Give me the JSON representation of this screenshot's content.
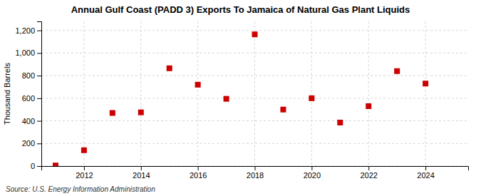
{
  "chart_data": {
    "type": "scatter",
    "title": "Annual Gulf Coast (PADD 3) Exports To Jamaica of Natural Gas Plant Liquids",
    "ylabel": "Thousand Barrels",
    "source": "Source: U.S. Energy Information Administration",
    "x": [
      2011,
      2012,
      2013,
      2014,
      2015,
      2016,
      2017,
      2018,
      2019,
      2020,
      2021,
      2022,
      2023,
      2024
    ],
    "values": [
      5,
      140,
      470,
      475,
      865,
      720,
      595,
      1165,
      500,
      600,
      385,
      530,
      840,
      730
    ],
    "color": "#cc0000",
    "marker": "square",
    "xlim": [
      2010.5,
      2025.5
    ],
    "ylim": [
      0,
      1280
    ],
    "xticks": [
      2012,
      2014,
      2016,
      2018,
      2020,
      2022,
      2024
    ],
    "yticks": [
      0,
      200,
      400,
      600,
      800,
      {
        "value": 1000,
        "label": "1,000"
      },
      {
        "value": 1200,
        "label": "1,200"
      }
    ],
    "grid": true
  }
}
